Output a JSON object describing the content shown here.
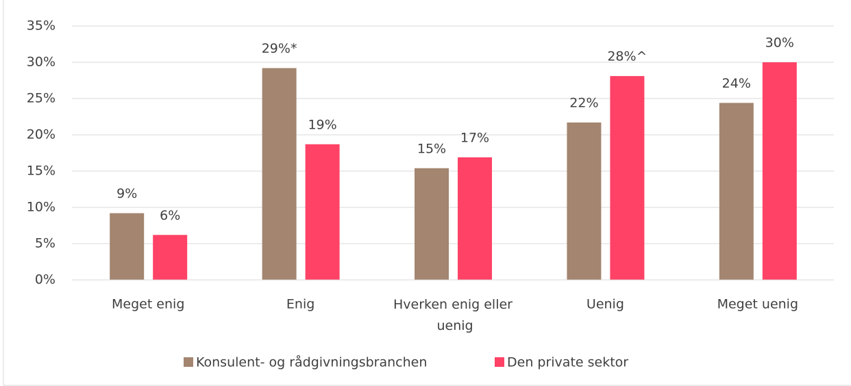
{
  "chart_data": {
    "type": "bar",
    "categories": [
      "Meget enig",
      "Enig",
      "Hverken enig eller uenig",
      "Uenig",
      "Meget uenig"
    ],
    "series": [
      {
        "name": "Konsulent- og rådgivningsbranchen",
        "color": "#a38570",
        "values": [
          9.2,
          29.2,
          15.4,
          21.7,
          24.4
        ],
        "value_labels": [
          "9%",
          "29%*",
          "15%",
          "22%",
          "24%"
        ]
      },
      {
        "name": "Den private sektor",
        "color": "#ff4266",
        "values": [
          6.2,
          18.7,
          16.9,
          28.1,
          30.0
        ],
        "value_labels": [
          "6%",
          "19%",
          "17%",
          "28%^",
          "30%"
        ]
      }
    ],
    "ylim": [
      0,
      35
    ],
    "yticks": [
      {
        "value": 0,
        "label": "0%"
      },
      {
        "value": 5,
        "label": "5%"
      },
      {
        "value": 10,
        "label": "10%"
      },
      {
        "value": 15,
        "label": "15%"
      },
      {
        "value": 20,
        "label": "20%"
      },
      {
        "value": 25,
        "label": "25%"
      },
      {
        "value": 30,
        "label": "30%"
      },
      {
        "value": 35,
        "label": "35%"
      }
    ],
    "grid": true,
    "legend": "bottom"
  }
}
